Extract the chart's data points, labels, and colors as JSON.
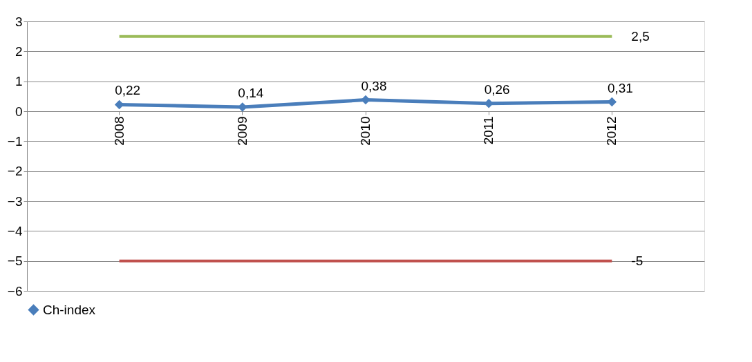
{
  "chart_data": {
    "type": "line",
    "categories": [
      "2008",
      "2009",
      "2010",
      "2011",
      "2012"
    ],
    "series": [
      {
        "name": "Ch-index",
        "color": "#4a7ebb",
        "values": [
          0.22,
          0.14,
          0.38,
          0.26,
          0.31
        ],
        "value_labels": [
          "0,22",
          "0,14",
          "0,38",
          "0,26",
          "0,31"
        ]
      }
    ],
    "ylim": [
      -6,
      3
    ],
    "yticks": [
      -6,
      -5,
      -4,
      -3,
      -2,
      -1,
      0,
      1,
      2,
      3
    ],
    "grid": "y",
    "legend": "bottom",
    "marker": "diamond",
    "line_style": "solid",
    "ref_lines": [
      {
        "axis": "y",
        "value": 2.5,
        "label": "2,5",
        "color": "#9bbb59"
      },
      {
        "axis": "y",
        "value": -5,
        "label": "-5",
        "color": "#c0504d"
      }
    ]
  }
}
